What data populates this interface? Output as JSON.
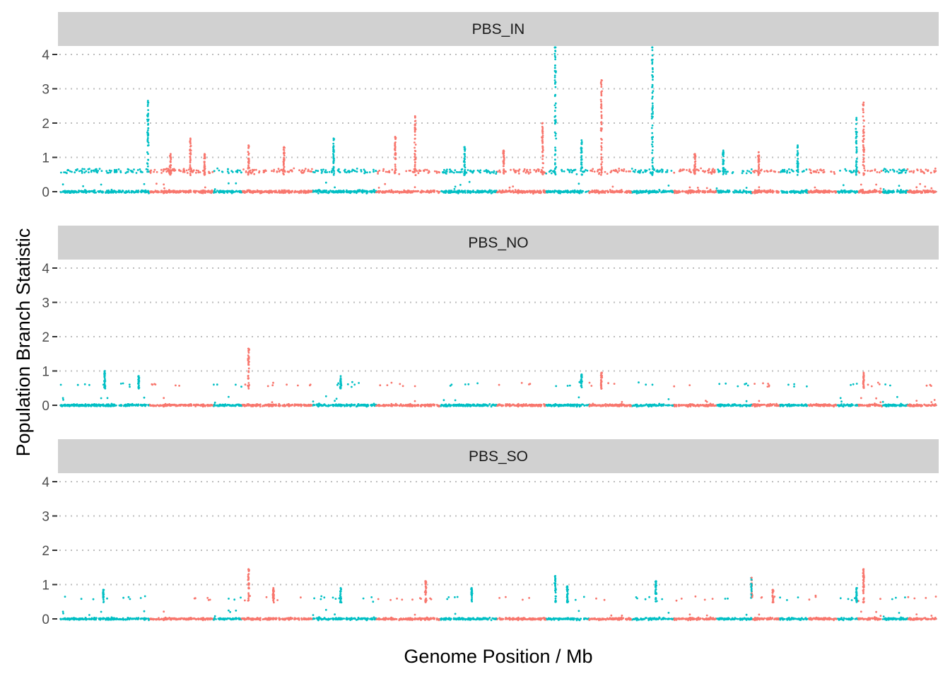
{
  "chart_data": {
    "type": "scatter",
    "title": "",
    "xlabel": "Genome Position / Mb",
    "ylabel": "Population Branch Statistic",
    "ylim": [
      -0.4,
      4.3
    ],
    "yticks": [
      0,
      1,
      2,
      3,
      4
    ],
    "x_tick_labels": [],
    "grid": "horizontal dotted",
    "legend": "none",
    "colors": {
      "odd_chromosome": "#00BFC4",
      "even_chromosome": "#F8766D",
      "strip_bg": "#d1d1d1",
      "grid": "#bdbdbd"
    },
    "chromosomes": [
      {
        "start": 0.0,
        "end": 12.5
      },
      {
        "start": 12.5,
        "end": 21.5
      },
      {
        "start": 21.5,
        "end": 25.5
      },
      {
        "start": 25.5,
        "end": 35.5
      },
      {
        "start": 35.5,
        "end": 44.5
      },
      {
        "start": 44.5,
        "end": 53.5
      },
      {
        "start": 53.5,
        "end": 61.5
      },
      {
        "start": 61.5,
        "end": 68.5
      },
      {
        "start": 68.5,
        "end": 74.5
      },
      {
        "start": 74.5,
        "end": 80.5
      },
      {
        "start": 80.5,
        "end": 86.5
      },
      {
        "start": 86.5,
        "end": 92.5
      },
      {
        "start": 92.5,
        "end": 97.5
      },
      {
        "start": 97.5,
        "end": 101.5
      },
      {
        "start": 101.5,
        "end": 105.5
      },
      {
        "start": 105.5,
        "end": 109.5
      },
      {
        "start": 109.5,
        "end": 112.5
      },
      {
        "start": 112.5,
        "end": 116.0
      },
      {
        "start": 116.0,
        "end": 119.5
      },
      {
        "start": 119.5,
        "end": 123.5
      }
    ],
    "panels": [
      {
        "name": "PBS_IN",
        "baseline_noise": 0.05,
        "plateau": 0.6,
        "peaks": [
          {
            "x": 12.3,
            "value": 2.65
          },
          {
            "x": 15.5,
            "value": 1.1
          },
          {
            "x": 18.3,
            "value": 1.55
          },
          {
            "x": 20.3,
            "value": 1.1
          },
          {
            "x": 26.5,
            "value": 1.35
          },
          {
            "x": 31.5,
            "value": 1.3
          },
          {
            "x": 38.5,
            "value": 1.55
          },
          {
            "x": 47.2,
            "value": 1.6
          },
          {
            "x": 50.0,
            "value": 2.2
          },
          {
            "x": 57.0,
            "value": 1.3
          },
          {
            "x": 62.5,
            "value": 1.2
          },
          {
            "x": 68.0,
            "value": 2.0
          },
          {
            "x": 69.8,
            "value": 4.3
          },
          {
            "x": 73.5,
            "value": 1.5
          },
          {
            "x": 76.3,
            "value": 3.25
          },
          {
            "x": 83.5,
            "value": 4.3
          },
          {
            "x": 89.5,
            "value": 1.1
          },
          {
            "x": 93.5,
            "value": 1.2
          },
          {
            "x": 98.5,
            "value": 1.15
          },
          {
            "x": 104.0,
            "value": 1.35
          },
          {
            "x": 112.3,
            "value": 2.15
          },
          {
            "x": 113.3,
            "value": 2.6
          }
        ]
      },
      {
        "name": "PBS_NO",
        "baseline_noise": 0.04,
        "plateau": 0.6,
        "peaks": [
          {
            "x": 6.2,
            "value": 1.0
          },
          {
            "x": 11.0,
            "value": 0.85
          },
          {
            "x": 26.5,
            "value": 1.65
          },
          {
            "x": 39.5,
            "value": 0.85
          },
          {
            "x": 73.5,
            "value": 0.9
          },
          {
            "x": 76.3,
            "value": 0.95
          },
          {
            "x": 113.3,
            "value": 0.95
          }
        ]
      },
      {
        "name": "PBS_SO",
        "baseline_noise": 0.04,
        "plateau": 0.6,
        "peaks": [
          {
            "x": 6.0,
            "value": 0.85
          },
          {
            "x": 26.5,
            "value": 1.45
          },
          {
            "x": 30.0,
            "value": 0.9
          },
          {
            "x": 39.5,
            "value": 0.9
          },
          {
            "x": 51.5,
            "value": 1.1
          },
          {
            "x": 58.0,
            "value": 0.9
          },
          {
            "x": 69.8,
            "value": 1.25
          },
          {
            "x": 71.5,
            "value": 0.95
          },
          {
            "x": 84.0,
            "value": 1.1
          },
          {
            "x": 97.5,
            "value": 1.2
          },
          {
            "x": 100.5,
            "value": 0.85
          },
          {
            "x": 112.3,
            "value": 0.9
          },
          {
            "x": 113.3,
            "value": 1.45
          }
        ]
      }
    ]
  }
}
